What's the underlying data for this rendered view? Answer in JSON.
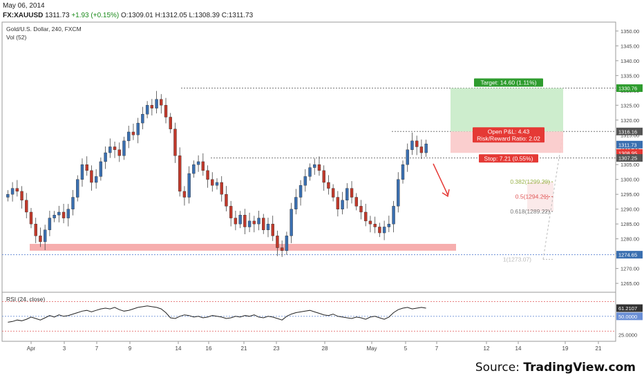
{
  "header": {
    "date": "May 06, 2014",
    "symbol": "FX:XAUUSD",
    "last": "1311.73",
    "change": "+1.93 (+0.15%)",
    "open": "O:1309.01",
    "high": "H:1312.05",
    "low": "L:1308.39",
    "close": "C:1311.73"
  },
  "panel": {
    "title": "Gold/U.S. Dollar, 240, FXCM",
    "vol_label": "Vol (52)",
    "rsi_label": "RSI (24, close)"
  },
  "source": {
    "prefix": "Source: ",
    "brand": "TradingView.com"
  },
  "colors": {
    "up": "#3a6fb0",
    "down": "#c0392b",
    "support_zone": "#f5a0a0",
    "target_zone": "#c8ebc8",
    "stop_zone": "#f9c9c9",
    "target_badge": "#2e9c2e",
    "stop_badge": "#e53935",
    "arrow": "#e53935"
  },
  "chart_data": [
    {
      "type": "candlestick",
      "title": "Gold/U.S. Dollar, 240, FXCM",
      "x_tick_labels": [
        "Apr",
        "3",
        "7",
        "9",
        "14",
        "16",
        "21",
        "23",
        "28",
        "May",
        "5",
        "7",
        "12",
        "14",
        "19",
        "21"
      ],
      "ylim": [
        1262,
        1353
      ],
      "y_ticks": [
        1265,
        1270,
        1275,
        1280,
        1285,
        1290,
        1295,
        1300,
        1305,
        1310,
        1315,
        1320,
        1325,
        1330,
        1335,
        1340,
        1345,
        1350
      ],
      "y_tick_labels": [
        "1265.00",
        "1270.00",
        "1275.00",
        "1280.00",
        "1285.00",
        "1290.00",
        "1295.00",
        "1300.00",
        "1305.00",
        "1310.00",
        "1315.00",
        "1320.00",
        "1325.00",
        "1330.00",
        "1335.00",
        "1340.00",
        "1345.00",
        "1350.00"
      ],
      "close_path": [
        1295,
        1297,
        1296,
        1293,
        1289,
        1285,
        1281,
        1279,
        1283,
        1287,
        1288,
        1289,
        1287,
        1290,
        1294,
        1300,
        1305,
        1303,
        1299,
        1301,
        1306,
        1309,
        1311,
        1310,
        1308,
        1313,
        1316,
        1315,
        1319,
        1322,
        1325,
        1324,
        1327,
        1325,
        1321,
        1317,
        1308,
        1296,
        1294,
        1302,
        1305,
        1306,
        1303,
        1300,
        1298,
        1299,
        1295,
        1291,
        1287,
        1285,
        1288,
        1284,
        1286,
        1285,
        1287,
        1283,
        1285,
        1281,
        1277,
        1276,
        1281,
        1290,
        1294,
        1298,
        1301,
        1304,
        1305,
        1303,
        1299,
        1297,
        1294,
        1290,
        1293,
        1297,
        1294,
        1291,
        1289,
        1286,
        1285,
        1284,
        1282,
        1284,
        1285,
        1291,
        1300,
        1305,
        1310,
        1313,
        1311,
        1309,
        1312
      ],
      "price_labels": [
        {
          "value": 1330.76,
          "label": "1330.76",
          "color": "#2e9c2e"
        },
        {
          "value": 1316.16,
          "label": "1316.16",
          "color": "#555555"
        },
        {
          "value": 1311.73,
          "label": "1311.73",
          "color": "#3a6fb0"
        },
        {
          "value": 1308.95,
          "label": "1308.95",
          "color": "#e53935"
        },
        {
          "value": 1307.25,
          "label": "1307.25",
          "color": "#555555"
        },
        {
          "value": 1274.65,
          "label": "1274.65",
          "color": "#3a6fb0"
        }
      ],
      "horizontal_levels": [
        1330.76,
        1316.16,
        1307.25,
        1274.65
      ],
      "support_zone": [
        1276.0,
        1278.3
      ],
      "position": {
        "target_label": "Target: 14.60 (1.11%)",
        "open_pl_label": "Open P&L: 4.43",
        "rr_label": "Risk/Reward Ratio: 2.02",
        "stop_label": "Stop: 7.21 (0.55%)",
        "entry": 1316.16,
        "target": 1330.76,
        "stop": 1308.95
      },
      "fibonacci": [
        {
          "ratio": "0.382",
          "value": "1299.20",
          "label": "0.382(1299.20)",
          "color": "#9ab34a"
        },
        {
          "ratio": "0.5",
          "value": "1294.21",
          "label": "0.5(1294.21)",
          "color": "#e05555"
        },
        {
          "ratio": "0.618",
          "value": "1289.22",
          "label": "0.618(1289.22)",
          "color": "#777777"
        },
        {
          "ratio": "1",
          "value": "1273.07",
          "label": "1(1273.07)",
          "color": "#bbbbbb"
        }
      ]
    },
    {
      "type": "line",
      "title": "RSI (24, close)",
      "ylim": [
        20,
        75
      ],
      "levels": [
        {
          "value": 70,
          "color": "#e05555"
        },
        {
          "value": 50,
          "color": "#6a8fd6"
        },
        {
          "value": 30,
          "color": "#e05555"
        }
      ],
      "current_label": "61.2107",
      "mid_label": "50.0000",
      "low_label": "25.0000",
      "values": [
        42,
        43,
        45,
        44,
        46,
        49,
        47,
        45,
        48,
        51,
        49,
        52,
        50,
        51,
        53,
        55,
        57,
        58,
        56,
        58,
        60,
        61,
        60,
        62,
        59,
        57,
        58,
        60,
        62,
        63,
        64,
        63,
        62,
        60,
        55,
        48,
        47,
        50,
        52,
        51,
        49,
        50,
        48,
        49,
        51,
        50,
        49,
        47,
        48,
        50,
        49,
        51,
        50,
        52,
        49,
        48,
        50,
        49,
        47,
        45,
        50,
        53,
        55,
        56,
        57,
        58,
        56,
        54,
        52,
        51,
        53,
        50,
        49,
        48,
        47,
        49,
        48,
        46,
        49,
        50,
        48,
        46,
        49,
        55,
        59,
        61,
        62,
        60,
        61,
        62,
        61
      ]
    }
  ]
}
